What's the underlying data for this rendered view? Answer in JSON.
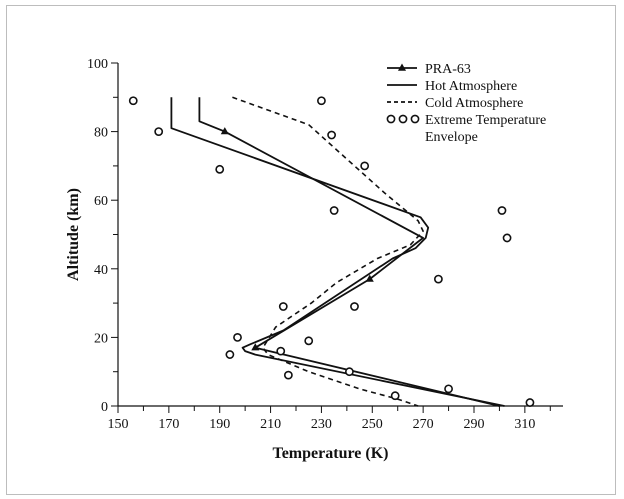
{
  "chart_data": {
    "type": "line",
    "title": "",
    "xlabel": "Temperature (K)",
    "ylabel": "Altitude (km)",
    "xlim": [
      150,
      325
    ],
    "ylim": [
      0,
      100
    ],
    "x_ticks": [
      150,
      170,
      190,
      210,
      230,
      250,
      270,
      290,
      310
    ],
    "y_ticks": [
      0,
      20,
      40,
      60,
      80,
      100
    ],
    "legend_position": "top-right",
    "grid": false,
    "series": [
      {
        "name": "PRA-63",
        "style": "solid-triangle",
        "points": [
          [
            182,
            90
          ],
          [
            182,
            83
          ],
          [
            192,
            80
          ],
          [
            270,
            49
          ],
          [
            249,
            37
          ],
          [
            204,
            17
          ],
          [
            300,
            0
          ]
        ]
      },
      {
        "name": "Hot Atmosphere",
        "style": "solid",
        "points": [
          [
            171,
            90
          ],
          [
            171,
            81
          ],
          [
            269,
            55
          ],
          [
            272,
            52
          ],
          [
            271,
            49
          ],
          [
            267,
            46
          ],
          [
            258,
            43
          ],
          [
            215,
            22
          ],
          [
            202,
            18
          ],
          [
            199,
            17
          ],
          [
            200,
            16
          ],
          [
            204,
            15
          ],
          [
            302,
            0
          ]
        ]
      },
      {
        "name": "Cold Atmosphere",
        "style": "dashed",
        "points": [
          [
            195,
            90
          ],
          [
            225,
            82
          ],
          [
            237,
            74
          ],
          [
            255,
            62
          ],
          [
            268,
            54
          ],
          [
            270,
            51
          ],
          [
            265,
            47
          ],
          [
            252,
            43
          ],
          [
            236,
            36
          ],
          [
            226,
            30
          ],
          [
            212,
            23
          ],
          [
            207,
            17
          ],
          [
            209,
            15
          ],
          [
            225,
            10
          ],
          [
            245,
            5
          ],
          [
            260,
            2
          ],
          [
            268,
            0
          ]
        ]
      },
      {
        "name": "Extreme Temperature Envelope",
        "style": "circles",
        "points": [
          [
            156,
            89
          ],
          [
            166,
            80
          ],
          [
            190,
            69
          ],
          [
            230,
            89
          ],
          [
            234,
            79
          ],
          [
            247,
            70
          ],
          [
            235,
            57
          ],
          [
            301,
            57
          ],
          [
            303,
            49
          ],
          [
            276,
            37
          ],
          [
            243,
            29
          ],
          [
            215,
            29
          ],
          [
            197,
            20
          ],
          [
            194,
            15
          ],
          [
            214,
            16
          ],
          [
            225,
            19
          ],
          [
            217,
            9
          ],
          [
            241,
            10
          ],
          [
            259,
            3
          ],
          [
            280,
            5
          ],
          [
            312,
            1
          ]
        ]
      }
    ]
  }
}
